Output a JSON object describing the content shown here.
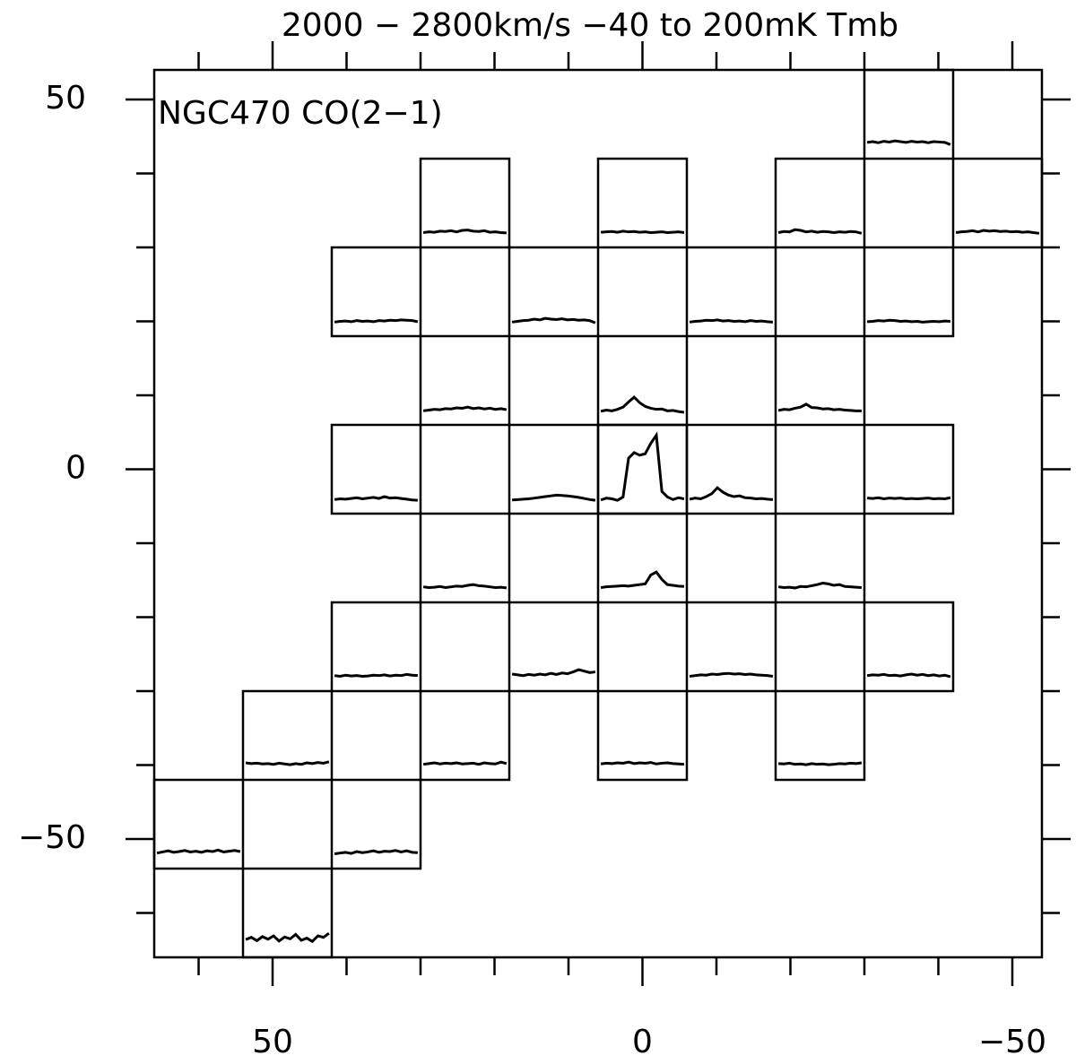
{
  "chart_data": {
    "type": "spectral-map",
    "title": "2000 − 2800km/s −40 to 200mK Tmb",
    "label": "NGC470 CO(2−1)",
    "xlim": [
      66,
      -54
    ],
    "ylim": [
      -66,
      54
    ],
    "xticks": [
      50,
      0,
      {
        "value": -50,
        "label": "−50"
      }
    ],
    "yticks": [
      50,
      0,
      {
        "value": -50,
        "label": "−50"
      }
    ],
    "xminor_ticks": [
      60,
      40,
      30,
      20,
      10,
      -10,
      -20,
      -30,
      -40
    ],
    "yminor_ticks": [
      40,
      30,
      20,
      10,
      -10,
      -20,
      -30,
      -40,
      -60
    ],
    "box_size": 12,
    "vlim": [
      2000,
      2800
    ],
    "tlim": [
      -40,
      200
    ],
    "x": [
      2025,
      2075,
      2125,
      2175,
      2225,
      2275,
      2325,
      2375,
      2425,
      2475,
      2525,
      2575,
      2625,
      2675,
      2725,
      2775
    ],
    "panels": [
      {
        "offset": [
          -36,
          48
        ],
        "values": [
          4,
          6,
          3,
          7,
          5,
          8,
          6,
          4,
          7,
          5,
          6,
          3,
          6,
          5,
          4,
          -2
        ]
      },
      {
        "offset": [
          24,
          36
        ],
        "values": [
          0,
          2,
          1,
          4,
          3,
          5,
          2,
          6,
          7,
          4,
          3,
          5,
          1,
          2,
          0,
          -1
        ]
      },
      {
        "offset": [
          0,
          36
        ],
        "values": [
          1,
          2,
          3,
          1,
          4,
          2,
          3,
          1,
          2,
          0,
          1,
          2,
          0,
          1,
          2,
          0
        ]
      },
      {
        "offset": [
          -24,
          36
        ],
        "values": [
          0,
          3,
          2,
          8,
          6,
          2,
          4,
          1,
          3,
          2,
          0,
          2,
          1,
          3,
          2,
          -2
        ]
      },
      {
        "offset": [
          -48,
          36
        ],
        "values": [
          0,
          2,
          3,
          5,
          2,
          6,
          4,
          5,
          3,
          4,
          2,
          3,
          1,
          2,
          0,
          -2
        ]
      },
      {
        "offset": [
          36,
          24
        ],
        "values": [
          -2,
          0,
          1,
          -1,
          2,
          0,
          1,
          -1,
          2,
          1,
          3,
          2,
          4,
          3,
          2,
          -1
        ]
      },
      {
        "offset": [
          12,
          24
        ],
        "values": [
          -2,
          0,
          2,
          3,
          6,
          4,
          8,
          6,
          5,
          7,
          4,
          5,
          3,
          4,
          2,
          -4
        ]
      },
      {
        "offset": [
          -12,
          24
        ],
        "values": [
          -2,
          0,
          1,
          3,
          2,
          4,
          1,
          2,
          0,
          1,
          -1,
          2,
          0,
          1,
          -1,
          -2
        ]
      },
      {
        "offset": [
          -36,
          24
        ],
        "values": [
          -1,
          0,
          2,
          1,
          3,
          2,
          0,
          1,
          -1,
          0,
          -2,
          -1,
          0,
          -1,
          1,
          0
        ]
      },
      {
        "offset": [
          24,
          12
        ],
        "values": [
          -2,
          0,
          2,
          1,
          4,
          3,
          6,
          5,
          8,
          4,
          6,
          3,
          5,
          2,
          4,
          1
        ]
      },
      {
        "offset": [
          0,
          12
        ],
        "values": [
          -3,
          0,
          -2,
          2,
          8,
          22,
          35,
          20,
          10,
          5,
          2,
          3,
          -2,
          -1,
          -4,
          -6
        ]
      },
      {
        "offset": [
          -24,
          12
        ],
        "values": [
          -1,
          2,
          1,
          5,
          8,
          16,
          7,
          6,
          3,
          4,
          1,
          2,
          0,
          -1,
          -2,
          -2
        ]
      },
      {
        "offset": [
          36,
          0
        ],
        "values": [
          -2,
          0,
          -1,
          1,
          3,
          0,
          2,
          4,
          1,
          6,
          2,
          3,
          1,
          -1,
          -3,
          -4
        ]
      },
      {
        "offset": [
          12,
          0
        ],
        "values": [
          -3,
          -2,
          -1,
          0,
          2,
          4,
          6,
          8,
          10,
          9,
          8,
          6,
          4,
          1,
          -2,
          -4
        ]
      },
      {
        "offset": [
          0,
          0
        ],
        "values": [
          -3,
          2,
          0,
          -4,
          5,
          110,
          125,
          118,
          122,
          150,
          172,
          20,
          5,
          -2,
          3,
          0
        ]
      },
      {
        "offset": [
          -12,
          0
        ],
        "values": [
          -1,
          2,
          0,
          6,
          14,
          30,
          18,
          10,
          6,
          8,
          3,
          2,
          0,
          1,
          -1,
          -2
        ]
      },
      {
        "offset": [
          -36,
          0
        ],
        "values": [
          2,
          1,
          3,
          0,
          2,
          1,
          2,
          0,
          1,
          0,
          1,
          2,
          0,
          1,
          0,
          3
        ]
      },
      {
        "offset": [
          24,
          -12
        ],
        "values": [
          2,
          0,
          1,
          3,
          0,
          2,
          4,
          3,
          6,
          8,
          5,
          4,
          2,
          0,
          1,
          -1
        ]
      },
      {
        "offset": [
          0,
          -12
        ],
        "values": [
          0,
          2,
          3,
          4,
          5,
          4,
          6,
          8,
          10,
          34,
          42,
          22,
          8,
          6,
          4,
          3
        ]
      },
      {
        "offset": [
          -24,
          -12
        ],
        "values": [
          2,
          0,
          1,
          -1,
          3,
          2,
          5,
          8,
          12,
          10,
          6,
          8,
          3,
          2,
          1,
          0
        ]
      },
      {
        "offset": [
          36,
          -24
        ],
        "values": [
          2,
          0,
          3,
          1,
          2,
          0,
          1,
          3,
          2,
          4,
          1,
          3,
          2,
          5,
          3,
          2
        ]
      },
      {
        "offset": [
          12,
          -24
        ],
        "values": [
          6,
          4,
          2,
          5,
          3,
          6,
          4,
          8,
          5,
          9,
          7,
          12,
          18,
          14,
          10,
          12
        ]
      },
      {
        "offset": [
          -12,
          -24
        ],
        "values": [
          0,
          2,
          4,
          3,
          6,
          5,
          7,
          8,
          6,
          7,
          5,
          6,
          4,
          3,
          2,
          0
        ]
      },
      {
        "offset": [
          -36,
          -24
        ],
        "values": [
          2,
          4,
          3,
          5,
          2,
          3,
          1,
          4,
          6,
          3,
          5,
          2,
          4,
          1,
          3,
          -1
        ]
      },
      {
        "offset": [
          48,
          -36
        ],
        "values": [
          6,
          4,
          5,
          3,
          4,
          2,
          5,
          3,
          1,
          4,
          2,
          6,
          4,
          7,
          5,
          9
        ]
      },
      {
        "offset": [
          24,
          -36
        ],
        "values": [
          2,
          4,
          6,
          3,
          5,
          4,
          6,
          3,
          4,
          5,
          2,
          6,
          4,
          3,
          8,
          4
        ]
      },
      {
        "offset": [
          0,
          -36
        ],
        "values": [
          3,
          5,
          4,
          6,
          5,
          8,
          4,
          6,
          5,
          7,
          3,
          5,
          6,
          4,
          3,
          2
        ]
      },
      {
        "offset": [
          -24,
          -36
        ],
        "values": [
          4,
          3,
          5,
          2,
          3,
          1,
          4,
          2,
          3,
          1,
          2,
          4,
          3,
          5,
          4,
          6
        ]
      },
      {
        "offset": [
          60,
          -48
        ],
        "values": [
          2,
          5,
          8,
          4,
          6,
          9,
          5,
          7,
          4,
          8,
          6,
          10,
          5,
          7,
          9,
          6
        ]
      },
      {
        "offset": [
          36,
          -48
        ],
        "values": [
          0,
          2,
          4,
          1,
          6,
          3,
          5,
          8,
          4,
          7,
          6,
          9,
          5,
          8,
          4,
          3
        ]
      },
      {
        "offset": [
          48,
          -60
        ],
        "values": [
          8,
          14,
          5,
          16,
          9,
          18,
          4,
          15,
          10,
          22,
          6,
          12,
          3,
          18,
          14,
          25
        ]
      }
    ]
  }
}
